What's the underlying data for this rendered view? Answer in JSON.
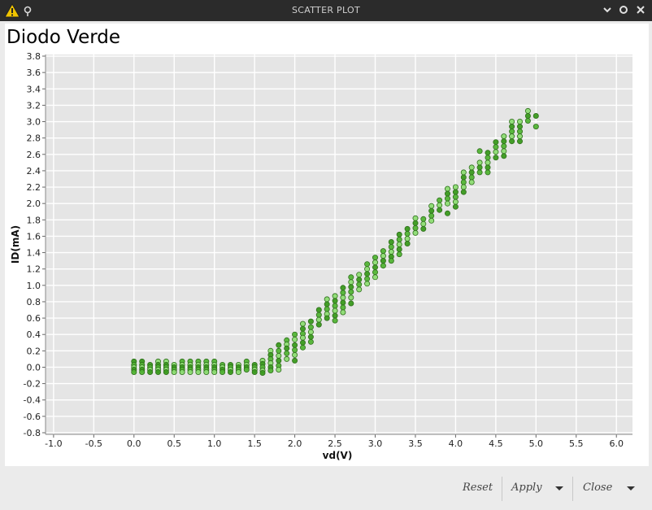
{
  "window": {
    "title": "SCATTER PLOT",
    "icons": [
      "warning-icon",
      "pin-icon"
    ],
    "controls": [
      "minimize-icon",
      "maximize-icon",
      "close-icon"
    ]
  },
  "footer": {
    "reset_label": "Reset",
    "apply_label": "Apply",
    "close_label": "Close"
  },
  "chart_data": {
    "type": "scatter",
    "title": "Diodo Verde",
    "xlabel": "vd(V)",
    "ylabel": "ID(mA)",
    "xlim": [
      -1.1,
      6.2
    ],
    "ylim": [
      -0.82,
      3.82
    ],
    "xticks": [
      "-1.0",
      "-0.5",
      "0.0",
      "0.5",
      "1.0",
      "1.5",
      "2.0",
      "2.5",
      "3.0",
      "3.5",
      "4.0",
      "4.5",
      "5.0",
      "5.5",
      "6.0"
    ],
    "yticks": [
      "-0.8",
      "-0.6",
      "-0.4",
      "-0.2",
      "0.0",
      "0.2",
      "0.4",
      "0.6",
      "0.8",
      "1.0",
      "1.2",
      "1.4",
      "1.6",
      "1.8",
      "2.0",
      "2.2",
      "2.4",
      "2.6",
      "2.8",
      "3.0",
      "3.2",
      "3.4",
      "3.6",
      "3.8"
    ],
    "grid": true,
    "plot_background": "#e5e5e5",
    "colors": {
      "dark": "#3a9a1e",
      "mid": "#52b435",
      "light": "#8ddc73",
      "edge": "#2f6f1c"
    },
    "points": [
      [
        0.0,
        0.07
      ],
      [
        0.0,
        0.03
      ],
      [
        0.0,
        0.0
      ],
      [
        0.0,
        -0.03
      ],
      [
        0.0,
        -0.06
      ],
      [
        0.1,
        0.07
      ],
      [
        0.1,
        0.03
      ],
      [
        0.1,
        0.0
      ],
      [
        0.1,
        -0.03
      ],
      [
        0.1,
        -0.06
      ],
      [
        0.2,
        0.03
      ],
      [
        0.2,
        0.0
      ],
      [
        0.2,
        -0.03
      ],
      [
        0.2,
        -0.06
      ],
      [
        0.3,
        0.07
      ],
      [
        0.3,
        0.03
      ],
      [
        0.3,
        0.0
      ],
      [
        0.3,
        -0.03
      ],
      [
        0.3,
        -0.06
      ],
      [
        0.4,
        0.07
      ],
      [
        0.4,
        0.03
      ],
      [
        0.4,
        0.0
      ],
      [
        0.4,
        -0.03
      ],
      [
        0.4,
        -0.06
      ],
      [
        0.5,
        0.03
      ],
      [
        0.5,
        0.0
      ],
      [
        0.5,
        -0.03
      ],
      [
        0.5,
        -0.06
      ],
      [
        0.6,
        0.07
      ],
      [
        0.6,
        0.03
      ],
      [
        0.6,
        0.0
      ],
      [
        0.6,
        -0.03
      ],
      [
        0.6,
        -0.06
      ],
      [
        0.7,
        0.07
      ],
      [
        0.7,
        0.03
      ],
      [
        0.7,
        0.0
      ],
      [
        0.7,
        -0.03
      ],
      [
        0.7,
        -0.06
      ],
      [
        0.8,
        0.07
      ],
      [
        0.8,
        0.03
      ],
      [
        0.8,
        0.0
      ],
      [
        0.8,
        -0.03
      ],
      [
        0.8,
        -0.06
      ],
      [
        0.9,
        0.07
      ],
      [
        0.9,
        0.03
      ],
      [
        0.9,
        0.0
      ],
      [
        0.9,
        -0.03
      ],
      [
        0.9,
        -0.06
      ],
      [
        1.0,
        0.07
      ],
      [
        1.0,
        0.03
      ],
      [
        1.0,
        0.0
      ],
      [
        1.0,
        -0.03
      ],
      [
        1.0,
        -0.06
      ],
      [
        1.1,
        0.03
      ],
      [
        1.1,
        0.0
      ],
      [
        1.1,
        -0.03
      ],
      [
        1.1,
        -0.06
      ],
      [
        1.2,
        0.03
      ],
      [
        1.2,
        0.0
      ],
      [
        1.2,
        -0.03
      ],
      [
        1.2,
        -0.06
      ],
      [
        1.3,
        0.03
      ],
      [
        1.3,
        0.0
      ],
      [
        1.3,
        -0.03
      ],
      [
        1.3,
        -0.06
      ],
      [
        1.4,
        0.07
      ],
      [
        1.4,
        0.03
      ],
      [
        1.4,
        0.0
      ],
      [
        1.4,
        -0.03
      ],
      [
        1.5,
        0.03
      ],
      [
        1.5,
        0.0
      ],
      [
        1.5,
        -0.03
      ],
      [
        1.5,
        -0.06
      ],
      [
        1.6,
        0.08
      ],
      [
        1.6,
        0.04
      ],
      [
        1.6,
        0.0
      ],
      [
        1.6,
        -0.04
      ],
      [
        1.6,
        -0.07
      ],
      [
        1.7,
        0.2
      ],
      [
        1.7,
        0.15
      ],
      [
        1.7,
        0.1
      ],
      [
        1.7,
        0.05
      ],
      [
        1.7,
        0.0
      ],
      [
        1.7,
        -0.04
      ],
      [
        1.8,
        0.27
      ],
      [
        1.8,
        0.2
      ],
      [
        1.8,
        0.14
      ],
      [
        1.8,
        0.08
      ],
      [
        1.8,
        0.02
      ],
      [
        1.8,
        -0.03
      ],
      [
        1.9,
        0.33
      ],
      [
        1.9,
        0.28
      ],
      [
        1.9,
        0.23
      ],
      [
        1.9,
        0.17
      ],
      [
        1.9,
        0.1
      ],
      [
        2.0,
        0.4
      ],
      [
        2.0,
        0.34
      ],
      [
        2.0,
        0.27
      ],
      [
        2.0,
        0.21
      ],
      [
        2.0,
        0.15
      ],
      [
        2.0,
        0.08
      ],
      [
        2.1,
        0.53
      ],
      [
        2.1,
        0.47
      ],
      [
        2.1,
        0.41
      ],
      [
        2.1,
        0.36
      ],
      [
        2.1,
        0.3
      ],
      [
        2.1,
        0.24
      ],
      [
        2.2,
        0.56
      ],
      [
        2.2,
        0.49
      ],
      [
        2.2,
        0.43
      ],
      [
        2.2,
        0.37
      ],
      [
        2.2,
        0.31
      ],
      [
        2.3,
        0.7
      ],
      [
        2.3,
        0.64
      ],
      [
        2.3,
        0.58
      ],
      [
        2.3,
        0.52
      ],
      [
        2.4,
        0.83
      ],
      [
        2.4,
        0.77
      ],
      [
        2.4,
        0.71
      ],
      [
        2.4,
        0.65
      ],
      [
        2.4,
        0.6
      ],
      [
        2.5,
        0.87
      ],
      [
        2.5,
        0.81
      ],
      [
        2.5,
        0.75
      ],
      [
        2.5,
        0.69
      ],
      [
        2.5,
        0.63
      ],
      [
        2.5,
        0.57
      ],
      [
        2.6,
        0.97
      ],
      [
        2.6,
        0.91
      ],
      [
        2.6,
        0.85
      ],
      [
        2.6,
        0.79
      ],
      [
        2.6,
        0.73
      ],
      [
        2.6,
        0.67
      ],
      [
        2.7,
        1.1
      ],
      [
        2.7,
        1.04
      ],
      [
        2.7,
        0.98
      ],
      [
        2.7,
        0.92
      ],
      [
        2.7,
        0.85
      ],
      [
        2.7,
        0.78
      ],
      [
        2.8,
        1.13
      ],
      [
        2.8,
        1.07
      ],
      [
        2.8,
        1.01
      ],
      [
        2.8,
        0.95
      ],
      [
        2.9,
        1.26
      ],
      [
        2.9,
        1.2
      ],
      [
        2.9,
        1.14
      ],
      [
        2.9,
        1.08
      ],
      [
        2.9,
        1.02
      ],
      [
        3.0,
        1.34
      ],
      [
        3.0,
        1.28
      ],
      [
        3.0,
        1.22
      ],
      [
        3.0,
        1.16
      ],
      [
        3.0,
        1.1
      ],
      [
        3.1,
        1.42
      ],
      [
        3.1,
        1.36
      ],
      [
        3.1,
        1.3
      ],
      [
        3.1,
        1.24
      ],
      [
        3.2,
        1.53
      ],
      [
        3.2,
        1.47
      ],
      [
        3.2,
        1.41
      ],
      [
        3.2,
        1.35
      ],
      [
        3.2,
        1.3
      ],
      [
        3.3,
        1.62
      ],
      [
        3.3,
        1.56
      ],
      [
        3.3,
        1.5
      ],
      [
        3.3,
        1.44
      ],
      [
        3.3,
        1.38
      ],
      [
        3.4,
        1.69
      ],
      [
        3.4,
        1.63
      ],
      [
        3.4,
        1.57
      ],
      [
        3.4,
        1.51
      ],
      [
        3.5,
        1.82
      ],
      [
        3.5,
        1.76
      ],
      [
        3.5,
        1.7
      ],
      [
        3.5,
        1.64
      ],
      [
        3.6,
        1.81
      ],
      [
        3.6,
        1.75
      ],
      [
        3.6,
        1.69
      ],
      [
        3.7,
        1.97
      ],
      [
        3.7,
        1.91
      ],
      [
        3.7,
        1.85
      ],
      [
        3.7,
        1.79
      ],
      [
        3.8,
        2.04
      ],
      [
        3.8,
        1.98
      ],
      [
        3.8,
        1.92
      ],
      [
        3.9,
        2.18
      ],
      [
        3.9,
        2.12
      ],
      [
        3.9,
        2.06
      ],
      [
        3.9,
        2.0
      ],
      [
        3.9,
        1.88
      ],
      [
        4.0,
        2.2
      ],
      [
        4.0,
        2.14
      ],
      [
        4.0,
        2.08
      ],
      [
        4.0,
        2.02
      ],
      [
        4.0,
        1.96
      ],
      [
        4.1,
        2.38
      ],
      [
        4.1,
        2.32
      ],
      [
        4.1,
        2.26
      ],
      [
        4.1,
        2.2
      ],
      [
        4.1,
        2.14
      ],
      [
        4.2,
        2.44
      ],
      [
        4.2,
        2.38
      ],
      [
        4.2,
        2.32
      ],
      [
        4.2,
        2.26
      ],
      [
        4.3,
        2.64
      ],
      [
        4.3,
        2.5
      ],
      [
        4.3,
        2.44
      ],
      [
        4.3,
        2.38
      ],
      [
        4.4,
        2.62
      ],
      [
        4.4,
        2.56
      ],
      [
        4.4,
        2.5
      ],
      [
        4.4,
        2.44
      ],
      [
        4.4,
        2.38
      ],
      [
        4.5,
        2.75
      ],
      [
        4.5,
        2.69
      ],
      [
        4.5,
        2.63
      ],
      [
        4.5,
        2.56
      ],
      [
        4.6,
        2.82
      ],
      [
        4.6,
        2.76
      ],
      [
        4.6,
        2.7
      ],
      [
        4.6,
        2.64
      ],
      [
        4.6,
        2.58
      ],
      [
        4.7,
        3.0
      ],
      [
        4.7,
        2.94
      ],
      [
        4.7,
        2.88
      ],
      [
        4.7,
        2.82
      ],
      [
        4.7,
        2.76
      ],
      [
        4.8,
        3.0
      ],
      [
        4.8,
        2.94
      ],
      [
        4.8,
        2.88
      ],
      [
        4.8,
        2.82
      ],
      [
        4.8,
        2.76
      ],
      [
        4.9,
        3.13
      ],
      [
        4.9,
        3.07
      ],
      [
        4.9,
        3.01
      ],
      [
        5.0,
        3.07
      ],
      [
        5.0,
        2.94
      ]
    ]
  }
}
